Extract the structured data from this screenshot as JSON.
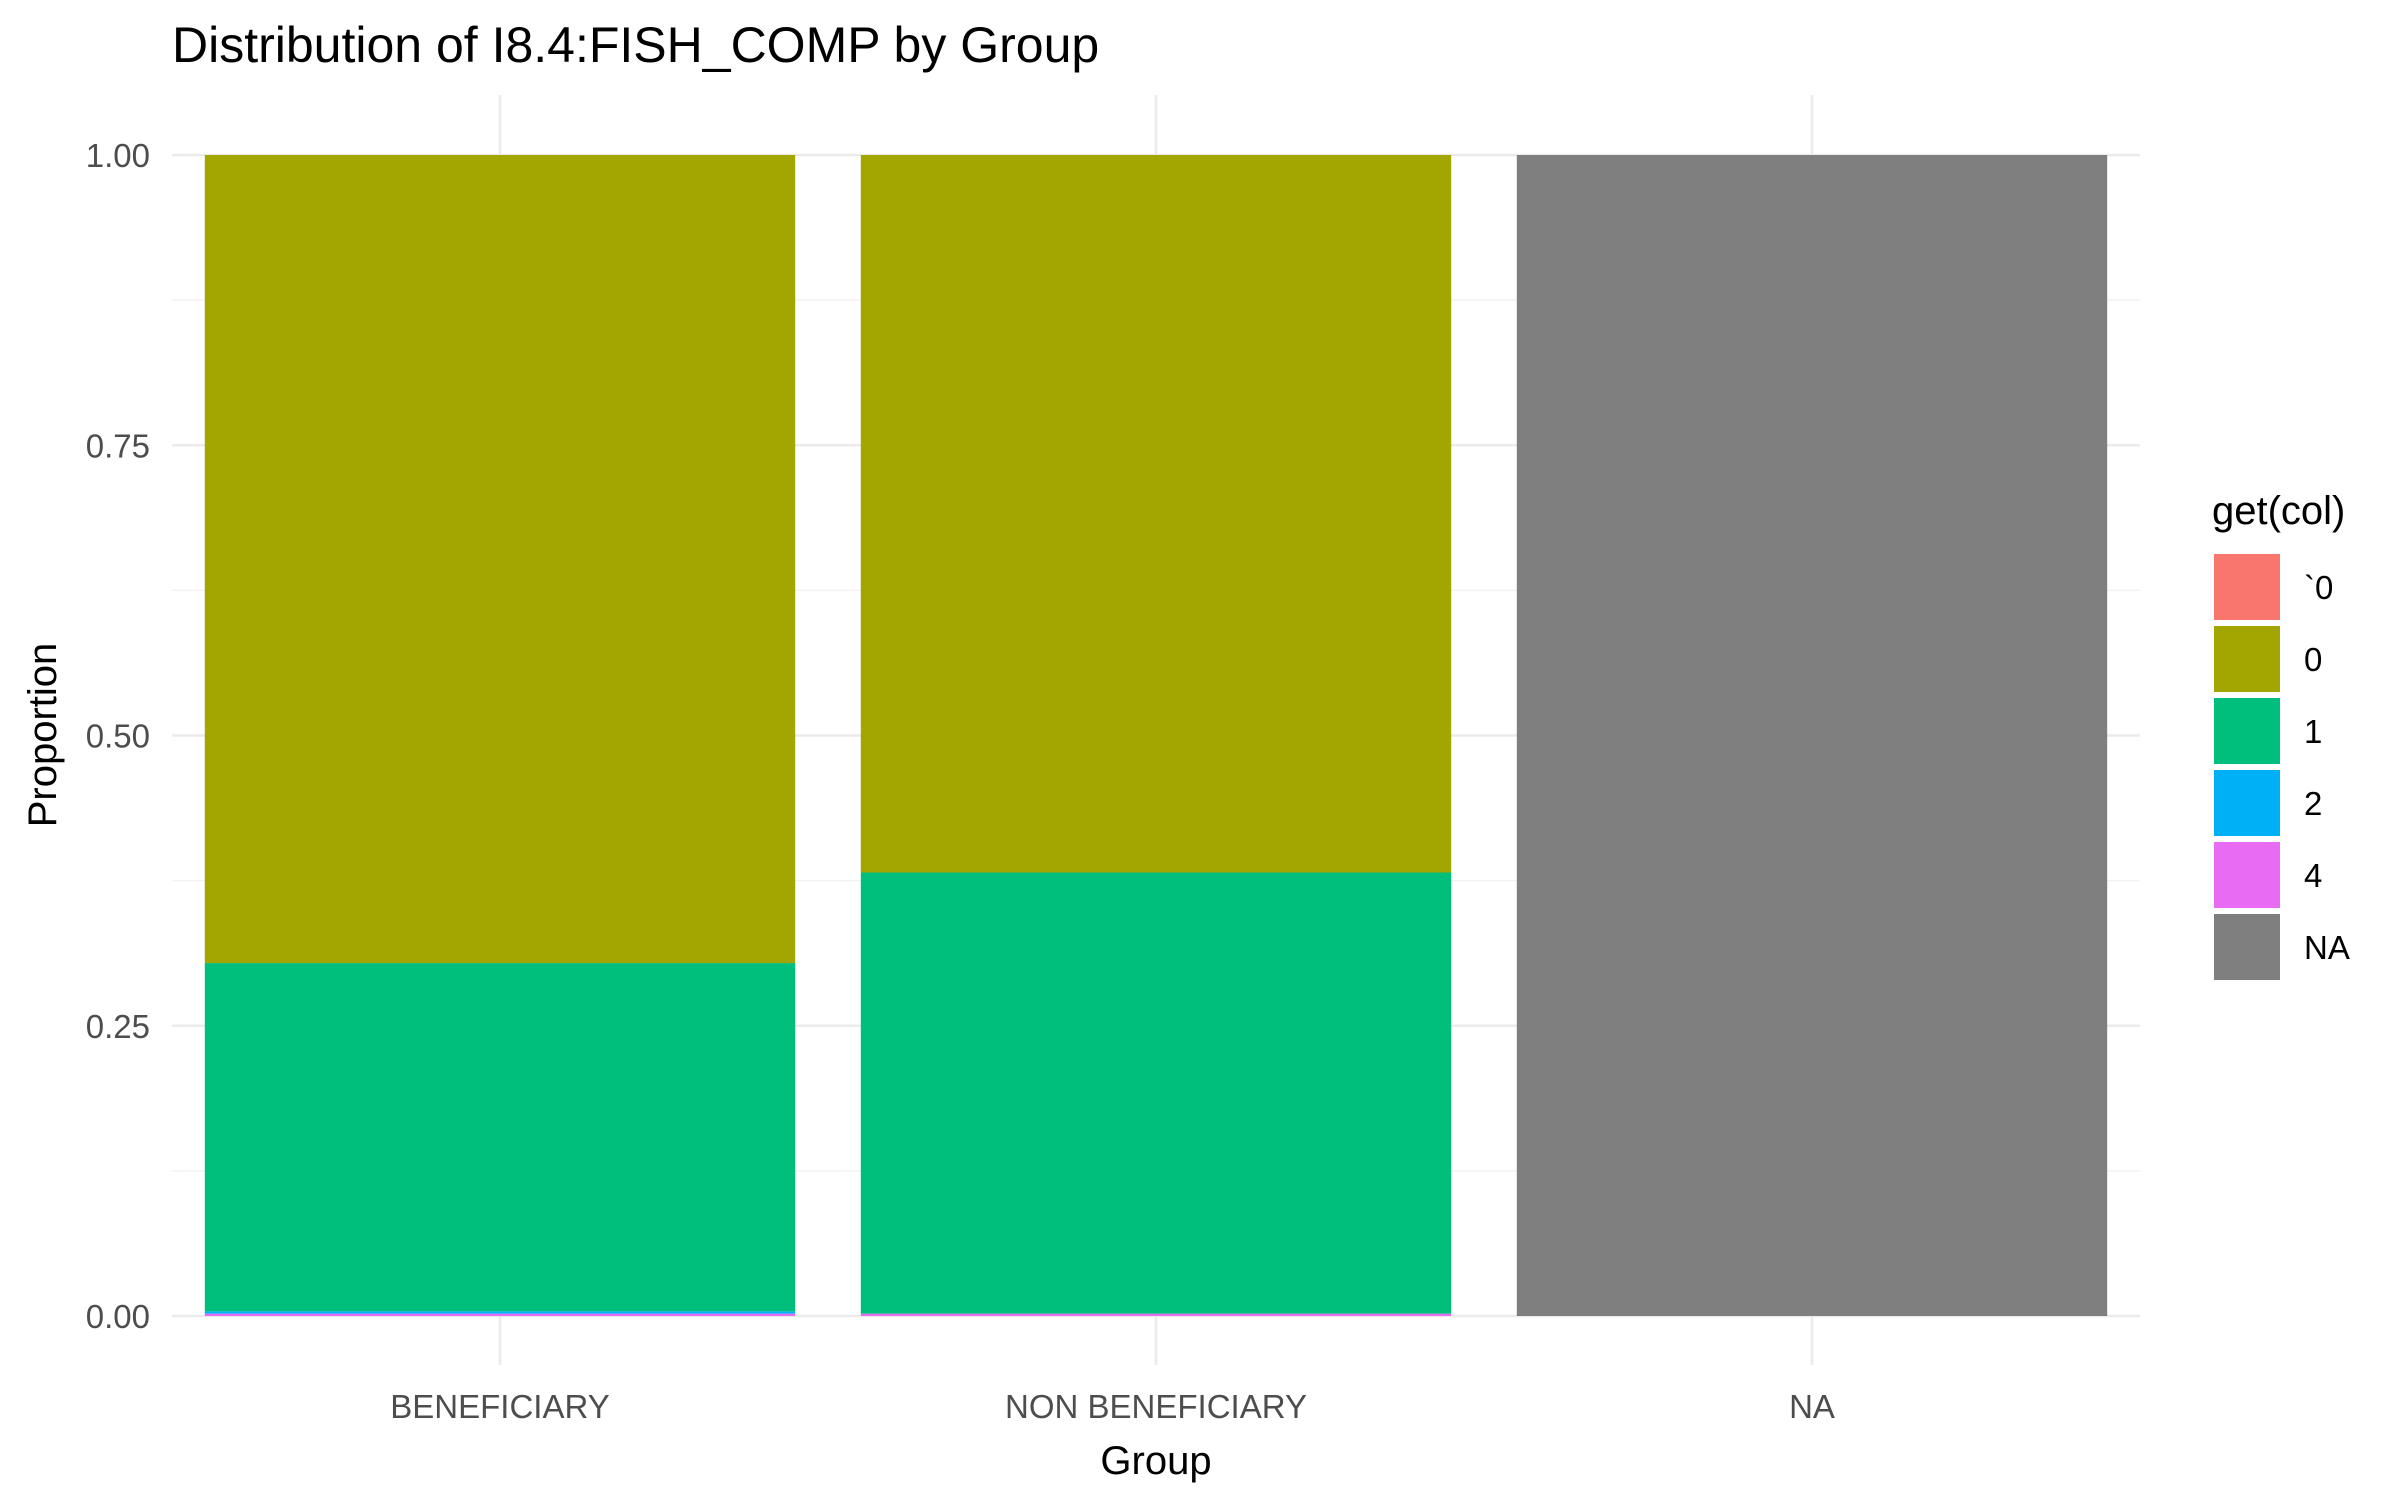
{
  "chart_data": {
    "type": "bar",
    "stacked": true,
    "title": "Distribution of I8.4:FISH_COMP by Group",
    "xlabel": "Group",
    "ylabel": "Proportion",
    "ylim": [
      0,
      1
    ],
    "yticks": [
      "0.00",
      "0.25",
      "0.50",
      "0.75",
      "1.00"
    ],
    "grid": true,
    "legend_position": "right",
    "legend_title": "get(col)",
    "categories": [
      "BENEFICIARY",
      "NON BENEFICIARY",
      "NA"
    ],
    "series": [
      {
        "name": "`0",
        "color": "#F8766D",
        "values": [
          0.0,
          0.0,
          0.0
        ]
      },
      {
        "name": "0",
        "color": "#A3A500",
        "values": [
          0.696,
          0.618,
          0.0
        ]
      },
      {
        "name": "1",
        "color": "#00BF7D",
        "values": [
          0.3,
          0.38,
          0.0
        ]
      },
      {
        "name": "2",
        "color": "#00B0F6",
        "values": [
          0.002,
          0.0,
          0.0
        ]
      },
      {
        "name": "4",
        "color": "#E76BF3",
        "values": [
          0.002,
          0.002,
          0.0
        ]
      },
      {
        "name": "NA",
        "color": "#7F7F7F",
        "values": [
          0.0,
          0.0,
          1.0
        ]
      }
    ]
  }
}
